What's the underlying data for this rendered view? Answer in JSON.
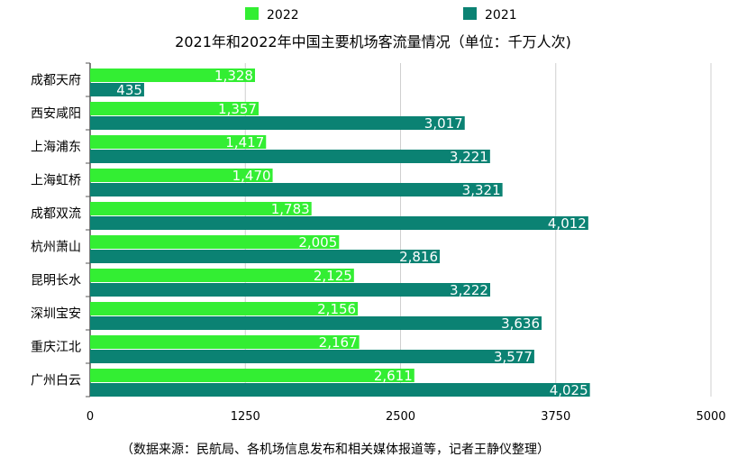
{
  "chart_data": {
    "type": "bar",
    "orientation": "horizontal",
    "title": "2021年和2022年中国主要机场客流量情况（单位：千万人次)",
    "categories": [
      "成都天府",
      "西安咸阳",
      "上海浦东",
      "上海虹桥",
      "成都双流",
      "杭州萧山",
      "昆明长水",
      "深圳宝安",
      "重庆江北",
      "广州白云"
    ],
    "series": [
      {
        "name": "2022",
        "color": "#33ee33",
        "values": [
          1328,
          1357,
          1417,
          1470,
          1783,
          2005,
          2125,
          2156,
          2167,
          2611
        ],
        "labels": [
          "1,328",
          "1,357",
          "1,417",
          "1,470",
          "1,783",
          "2,005",
          "2,125",
          "2,156",
          "2,167",
          "2,611"
        ]
      },
      {
        "name": "2021",
        "color": "#0b8273",
        "values": [
          435,
          3017,
          3221,
          3321,
          4012,
          2816,
          3222,
          3636,
          3577,
          4025
        ],
        "labels": [
          "435",
          "3,017",
          "3,221",
          "3,321",
          "4,012",
          "2,816",
          "3,222",
          "3,636",
          "3,577",
          "4,025"
        ]
      }
    ],
    "xlim": [
      0,
      5000
    ],
    "xticks": [
      "0",
      "1250",
      "2500",
      "3750",
      "5000"
    ],
    "xtick_values": [
      0,
      1250,
      2500,
      3750,
      5000
    ],
    "grid": true,
    "legend": "top",
    "source": "（数据来源：民航局、各机场信息发布和相关媒体报道等，记者王静仪整理）"
  }
}
